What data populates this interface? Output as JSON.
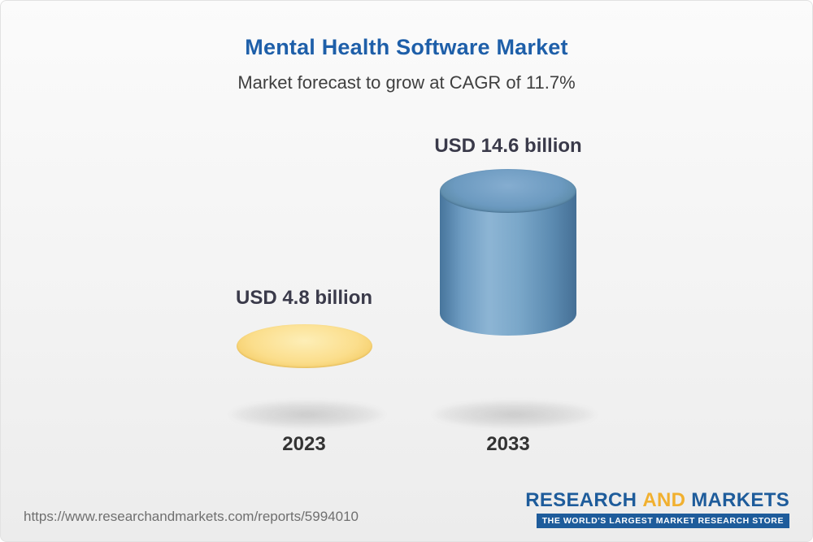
{
  "header": {
    "title": "Mental Health Software Market",
    "subtitle": "Market forecast to grow at CAGR of 11.7%"
  },
  "chart_data": {
    "type": "bar",
    "bar_style": "3d-cylinder",
    "title": "Mental Health Software Market",
    "subtitle": "Market forecast to grow at CAGR of 11.7%",
    "cagr": "11.7%",
    "categories": [
      "2023",
      "2033"
    ],
    "values": [
      4.8,
      14.6
    ],
    "unit": "USD billion",
    "value_labels": [
      "USD 4.8 billion",
      "USD 14.6 billion"
    ],
    "legend": "none",
    "grid": "off",
    "colors": {
      "bar_2023": "#f8d26e",
      "bar_2033_growth_segment": "#6e9cc2",
      "bar_2033_base_segment": "#f8d26e",
      "title_blue": "#1e5fa9",
      "label_dark": "#3a3a4a"
    }
  },
  "footer": {
    "report_url": "https://www.researchandmarkets.com/reports/5994010",
    "logo": {
      "word_research": "RESEARCH",
      "word_and": "AND",
      "word_markets": "MARKETS",
      "tagline": "THE WORLD'S LARGEST MARKET RESEARCH STORE",
      "brand_blue": "#1e5c9b",
      "brand_yellow": "#f1b02f"
    }
  }
}
